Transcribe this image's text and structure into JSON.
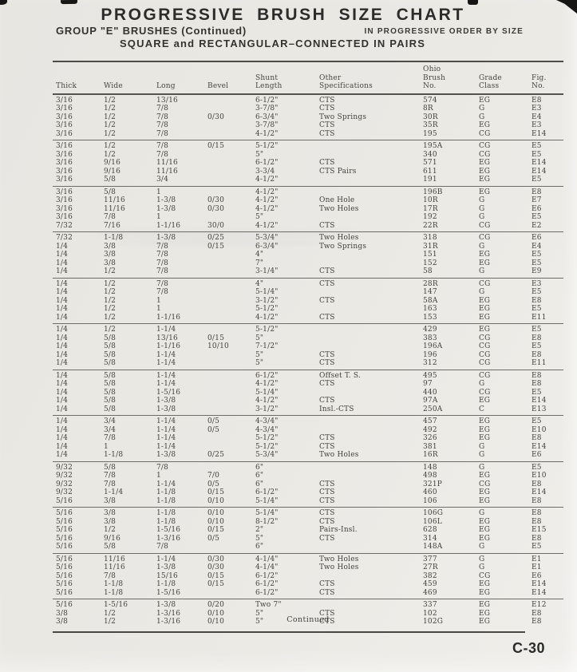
{
  "page": {
    "title": "PROGRESSIVE BRUSH SIZE CHART",
    "subtitle_left": "GROUP \"E\" BRUSHES (Continued)",
    "subtitle_right": "IN PROGRESSIVE ORDER BY SIZE",
    "subtitle_center": "SQUARE and RECTANGULAR–CONNECTED IN PAIRS",
    "footer_continued": "Continued",
    "page_number": "C-30"
  },
  "table": {
    "columns": [
      {
        "key": "thick",
        "label": "Thick"
      },
      {
        "key": "wide",
        "label": "Wide"
      },
      {
        "key": "long",
        "label": "Long"
      },
      {
        "key": "bevel",
        "label": "Bevel"
      },
      {
        "key": "shunt_length",
        "label": "Shunt\nLength"
      },
      {
        "key": "other_specifications",
        "label": "Other\nSpecifications"
      },
      {
        "key": "ohio_brush_no",
        "label": "Ohio\nBrush\nNo."
      },
      {
        "key": "grade_class",
        "label": "Grade\nClass"
      },
      {
        "key": "fig_no",
        "label": "Fig.\nNo."
      }
    ],
    "groups": [
      {
        "rows": [
          [
            "3/16",
            "1/2",
            "13/16",
            "",
            "6-1/2\"",
            "CTS",
            "574",
            "EG",
            "E8"
          ],
          [
            "3/16",
            "1/2",
            "7/8",
            "",
            "3-7/8\"",
            "CTS",
            "8R",
            "G",
            "E3"
          ],
          [
            "3/16",
            "1/2",
            "7/8",
            "0/30",
            "6-3/4\"",
            "Two Springs",
            "30R",
            "G",
            "E4"
          ],
          [
            "3/16",
            "1/2",
            "7/8",
            "",
            "3-7/8\"",
            "CTS",
            "35R",
            "EG",
            "E3"
          ],
          [
            "3/16",
            "1/2",
            "7/8",
            "",
            "4-1/2\"",
            "CTS",
            "195",
            "CG",
            "E14"
          ]
        ]
      },
      {
        "rows": [
          [
            "3/16",
            "1/2",
            "7/8",
            "0/15",
            "5-1/2\"",
            "",
            "195A",
            "CG",
            "E5"
          ],
          [
            "3/16",
            "1/2",
            "7/8",
            "",
            "5\"",
            "",
            "340",
            "CG",
            "E5"
          ],
          [
            "3/16",
            "9/16",
            "11/16",
            "",
            "6-1/2\"",
            "CTS",
            "571",
            "EG",
            "E14"
          ],
          [
            "3/16",
            "9/16",
            "11/16",
            "",
            "3-3/4",
            "CTS Pairs",
            "611",
            "EG",
            "E14"
          ],
          [
            "3/16",
            "5/8",
            "3/4",
            "",
            "4-1/2\"",
            "",
            "191",
            "EG",
            "E5"
          ]
        ]
      },
      {
        "rows": [
          [
            "3/16",
            "5/8",
            "1",
            "",
            "4-1/2\"",
            "",
            "196B",
            "EG",
            "E8"
          ],
          [
            "3/16",
            "11/16",
            "1-3/8",
            "0/30",
            "4-1/2\"",
            "One Hole",
            "10R",
            "G",
            "E7"
          ],
          [
            "3/16",
            "11/16",
            "1-3/8",
            "0/30",
            "4-1/2\"",
            "Two Holes",
            "17R",
            "G",
            "E6"
          ],
          [
            "3/16",
            "7/8",
            "1",
            "",
            "5\"",
            "",
            "192",
            "G",
            "E5"
          ],
          [
            "7/32",
            "7/16",
            "1-1/16",
            "30/0",
            "4-1/2\"",
            "CTS",
            "22R",
            "CG",
            "E2"
          ]
        ]
      },
      {
        "rows": [
          [
            "7/32",
            "1-1/8",
            "1-3/8",
            "0/25",
            "5-3/4\"",
            "Two Holes",
            "318",
            "CG",
            "E6"
          ],
          [
            "1/4",
            "3/8",
            "7/8",
            "0/15",
            "6-3/4\"",
            "Two Springs",
            "31R",
            "G",
            "E4"
          ],
          [
            "1/4",
            "3/8",
            "7/8",
            "",
            "4\"",
            "",
            "151",
            "EG",
            "E5"
          ],
          [
            "1/4",
            "3/8",
            "7/8",
            "",
            "7\"",
            "",
            "152",
            "EG",
            "E5"
          ],
          [
            "1/4",
            "1/2",
            "7/8",
            "",
            "3-1/4\"",
            "CTS",
            "58",
            "G",
            "E9"
          ]
        ]
      },
      {
        "rows": [
          [
            "1/4",
            "1/2",
            "7/8",
            "",
            "4\"",
            "CTS",
            "28R",
            "CG",
            "E3"
          ],
          [
            "1/4",
            "1/2",
            "7/8",
            "",
            "5-1/4\"",
            "",
            "147",
            "G",
            "E5"
          ],
          [
            "1/4",
            "1/2",
            "1",
            "",
            "3-1/2\"",
            "CTS",
            "58A",
            "EG",
            "E8"
          ],
          [
            "1/4",
            "1/2",
            "1",
            "",
            "5-1/2\"",
            "",
            "163",
            "EG",
            "E5"
          ],
          [
            "1/4",
            "1/2",
            "1-1/16",
            "",
            "4-1/2\"",
            "CTS",
            "153",
            "EG",
            "E11"
          ]
        ]
      },
      {
        "rows": [
          [
            "1/4",
            "1/2",
            "1-1/4",
            "",
            "5-1/2\"",
            "",
            "429",
            "EG",
            "E5"
          ],
          [
            "1/4",
            "5/8",
            "13/16",
            "0/15",
            "5\"",
            "",
            "383",
            "CG",
            "E8"
          ],
          [
            "1/4",
            "5/8",
            "1-1/16",
            "10/10",
            "7-1/2\"",
            "",
            "196A",
            "CG",
            "E5"
          ],
          [
            "1/4",
            "5/8",
            "1-1/4",
            "",
            "5\"",
            "CTS",
            "196",
            "CG",
            "E8"
          ],
          [
            "1/4",
            "5/8",
            "1-1/4",
            "",
            "5\"",
            "CTS",
            "312",
            "CG",
            "E11"
          ]
        ]
      },
      {
        "rows": [
          [
            "1/4",
            "5/8",
            "1-1/4",
            "",
            "6-1/2\"",
            "Offset T. S.",
            "495",
            "CG",
            "E8"
          ],
          [
            "1/4",
            "5/8",
            "1-1/4",
            "",
            "4-1/2\"",
            "CTS",
            "97",
            "G",
            "E8"
          ],
          [
            "1/4",
            "5/8",
            "1-5/16",
            "",
            "5-1/4\"",
            "",
            "440",
            "CG",
            "E5"
          ],
          [
            "1/4",
            "5/8",
            "1-3/8",
            "",
            "4-1/2\"",
            "CTS",
            "97A",
            "EG",
            "E14"
          ],
          [
            "1/4",
            "5/8",
            "1-3/8",
            "",
            "3-1/2\"",
            "Insl.-CTS",
            "250A",
            "C",
            "E13"
          ]
        ]
      },
      {
        "rows": [
          [
            "1/4",
            "3/4",
            "1-1/4",
            "0/5",
            "4-3/4\"",
            "",
            "457",
            "EG",
            "E5"
          ],
          [
            "1/4",
            "3/4",
            "1-1/4",
            "0/5",
            "4-3/4\"",
            "",
            "492",
            "EG",
            "E10"
          ],
          [
            "1/4",
            "7/8",
            "1-1/4",
            "",
            "5-1/2\"",
            "CTS",
            "326",
            "EG",
            "E8"
          ],
          [
            "1/4",
            "1",
            "1-1/4",
            "",
            "5-1/2\"",
            "CTS",
            "381",
            "G",
            "E14"
          ],
          [
            "1/4",
            "1-1/8",
            "1-3/8",
            "0/25",
            "5-3/4\"",
            "Two Holes",
            "16R",
            "G",
            "E6"
          ]
        ]
      },
      {
        "rows": [
          [
            "9/32",
            "5/8",
            "7/8",
            "",
            "6\"",
            "",
            "148",
            "G",
            "E5"
          ],
          [
            "9/32",
            "7/8",
            "1",
            "7/0",
            "6\"",
            "",
            "498",
            "EG",
            "E10"
          ],
          [
            "9/32",
            "7/8",
            "1-1/4",
            "0/5",
            "6\"",
            "CTS",
            "321P",
            "CG",
            "E8"
          ],
          [
            "9/32",
            "1-1/4",
            "1-1/8",
            "0/15",
            "6-1/2\"",
            "CTS",
            "460",
            "EG",
            "E14"
          ],
          [
            "5/16",
            "3/8",
            "1-1/8",
            "0/10",
            "5-1/4\"",
            "CTS",
            "106",
            "EG",
            "E8"
          ]
        ]
      },
      {
        "rows": [
          [
            "5/16",
            "3/8",
            "1-1/8",
            "0/10",
            "5-1/4\"",
            "CTS",
            "106G",
            "G",
            "E8"
          ],
          [
            "5/16",
            "3/8",
            "1-1/8",
            "0/10",
            "8-1/2\"",
            "CTS",
            "106L",
            "EG",
            "E8"
          ],
          [
            "5/16",
            "1/2",
            "1-5/16",
            "0/15",
            "2\"",
            "Pairs-Insl.",
            "628",
            "EG",
            "E15"
          ],
          [
            "5/16",
            "9/16",
            "1-3/16",
            "0/5",
            "5\"",
            "CTS",
            "314",
            "EG",
            "E8"
          ],
          [
            "5/16",
            "5/8",
            "7/8",
            "",
            "6\"",
            "",
            "148A",
            "G",
            "E5"
          ]
        ]
      },
      {
        "rows": [
          [
            "5/16",
            "11/16",
            "1-1/4",
            "0/30",
            "4-1/4\"",
            "Two Holes",
            "377",
            "G",
            "E1"
          ],
          [
            "5/16",
            "11/16",
            "1-3/8",
            "0/30",
            "4-1/4\"",
            "Two Holes",
            "27R",
            "G",
            "E1"
          ],
          [
            "5/16",
            "7/8",
            "15/16",
            "0/15",
            "6-1/2\"",
            "",
            "382",
            "CG",
            "E6"
          ],
          [
            "5/16",
            "1-1/8",
            "1-1/8",
            "0/15",
            "6-1/2\"",
            "CTS",
            "459",
            "EG",
            "E14"
          ],
          [
            "5/16",
            "1-1/8",
            "1-5/16",
            "",
            "6-1/2\"",
            "CTS",
            "469",
            "EG",
            "E14"
          ]
        ]
      },
      {
        "rows": [
          [
            "5/16",
            "1-5/16",
            "1-3/8",
            "0/20",
            "Two 7\"",
            "",
            "337",
            "EG",
            "E12"
          ],
          [
            "3/8",
            "1/2",
            "1-3/16",
            "0/10",
            "5\"",
            "CTS",
            "102",
            "EG",
            "E8"
          ],
          [
            "3/8",
            "1/2",
            "1-3/16",
            "0/10",
            "5\"",
            "CTS",
            "102G",
            "EG",
            "E8"
          ]
        ]
      }
    ]
  }
}
